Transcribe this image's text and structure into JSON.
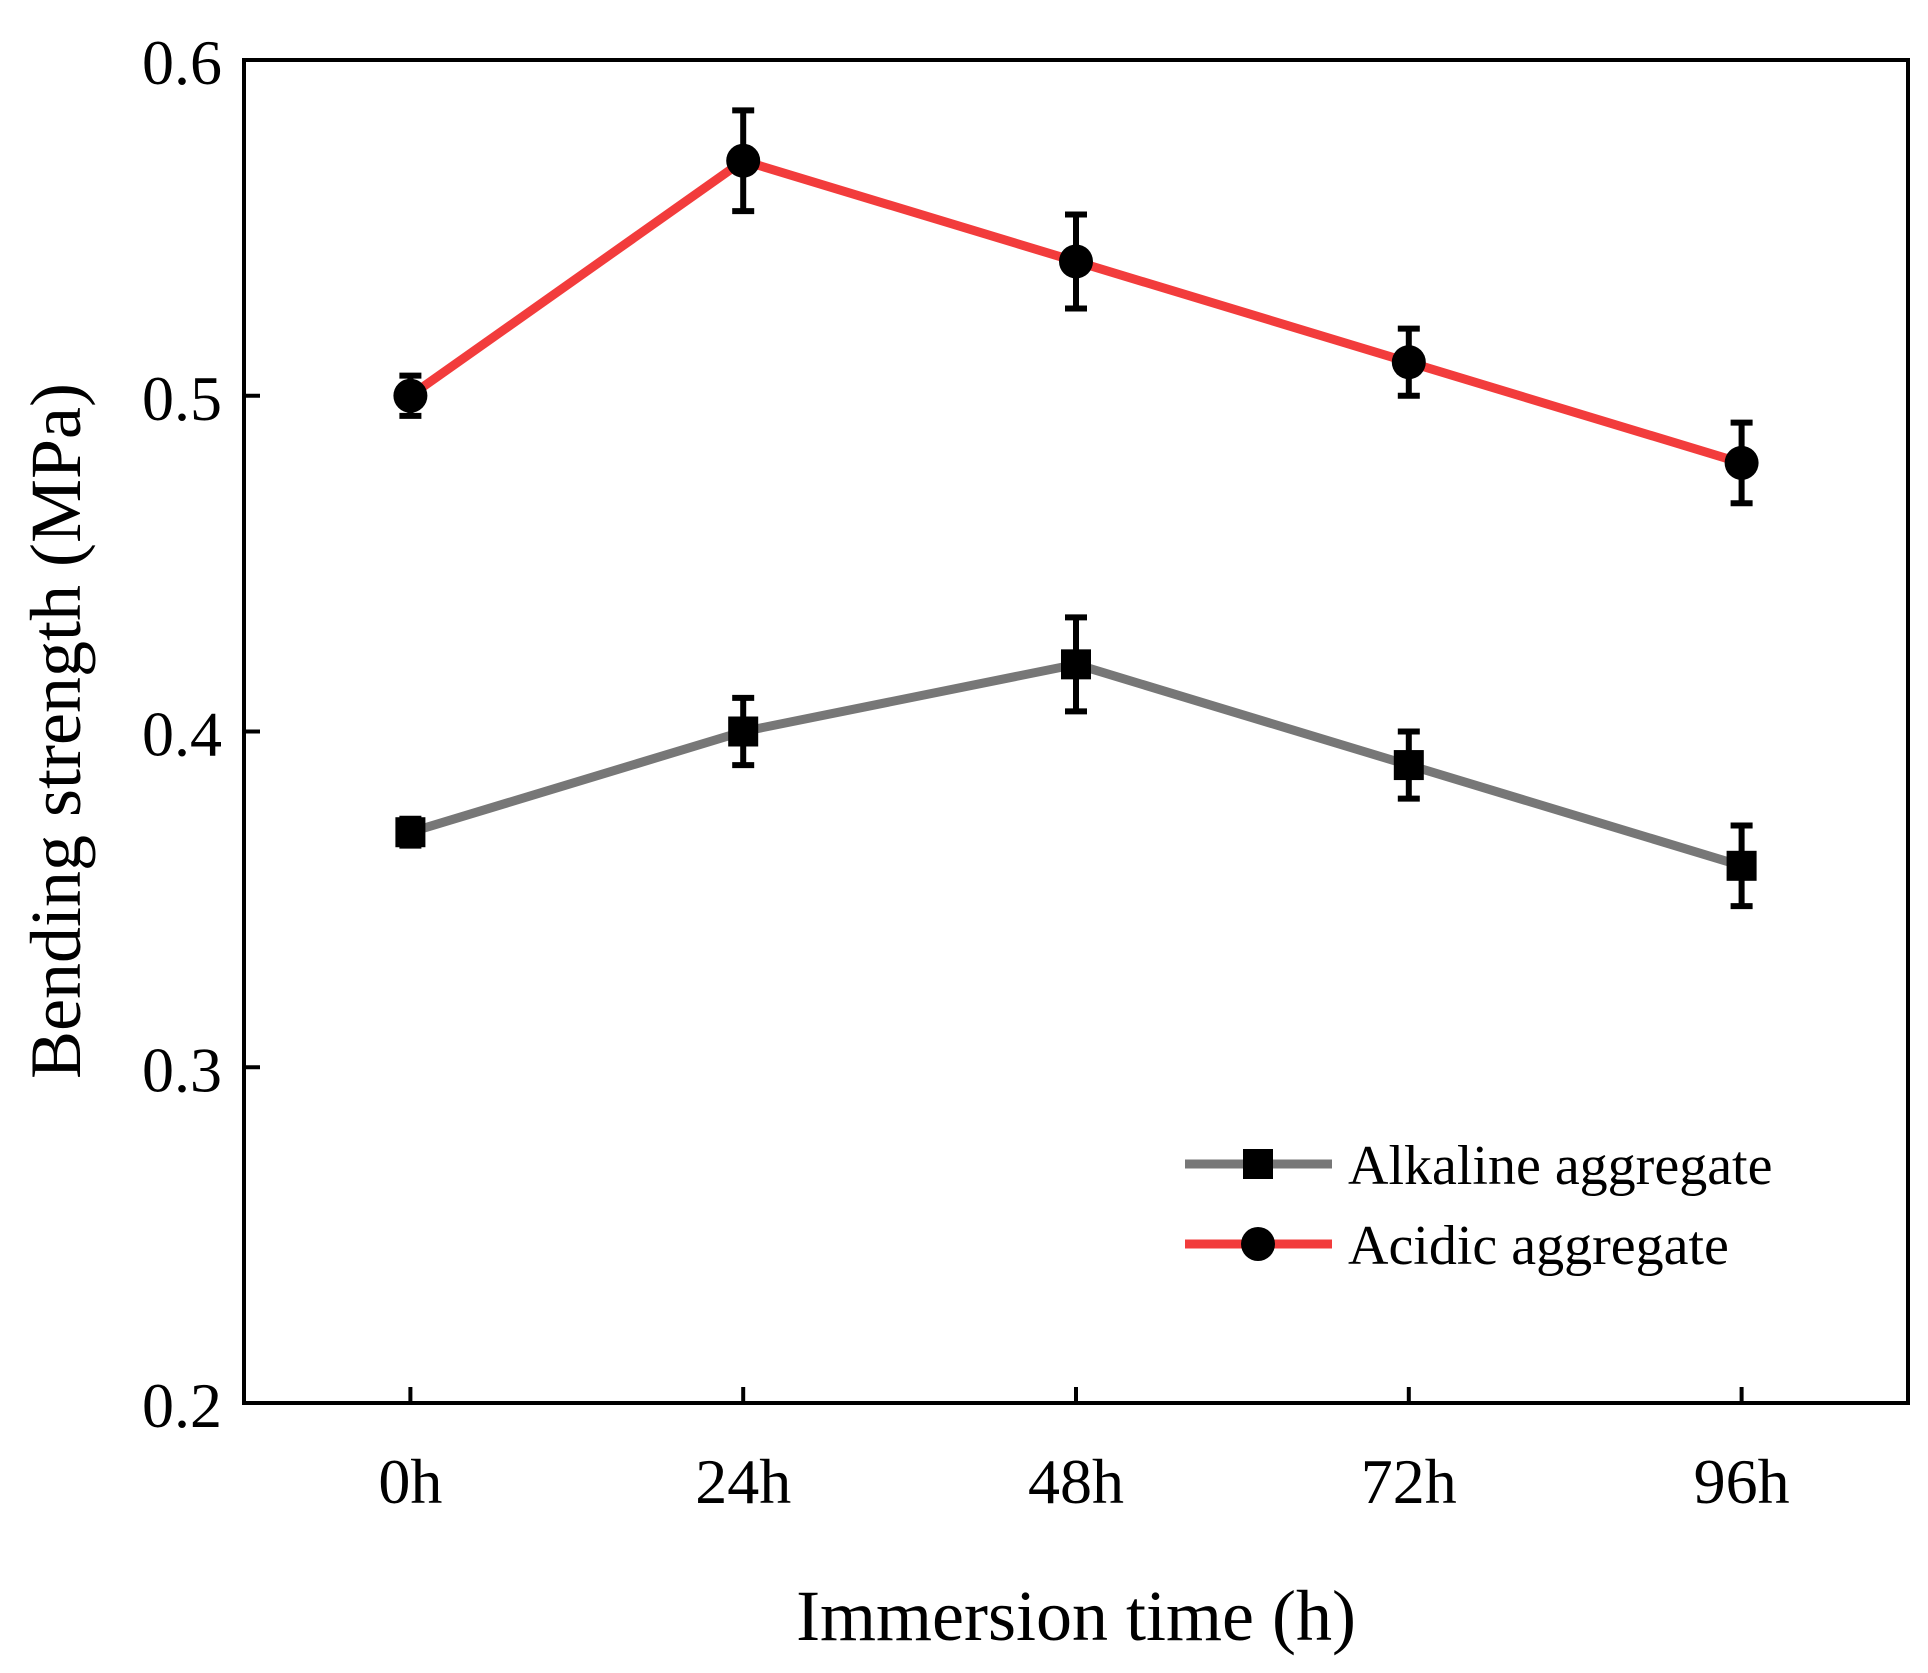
{
  "chart_data": {
    "type": "line",
    "title": "",
    "xlabel": "Immersion time (h)",
    "ylabel": "Bending strength (MPa)",
    "categories": [
      "0h",
      "24h",
      "48h",
      "72h",
      "96h"
    ],
    "ylim": [
      0.2,
      0.6
    ],
    "yticks": [
      "0.2",
      "0.3",
      "0.4",
      "0.5",
      "0.6"
    ],
    "ytick_values": [
      0.2,
      0.3,
      0.4,
      0.5,
      0.6
    ],
    "grid": false,
    "legend_position": "bottom-right",
    "series": [
      {
        "name": "Alkaline aggregate",
        "color": "#777777",
        "marker": "square",
        "values": [
          0.37,
          0.4,
          0.42,
          0.39,
          0.36
        ],
        "errors": [
          0.004,
          0.01,
          0.014,
          0.01,
          0.012
        ]
      },
      {
        "name": "Acidic aggregate",
        "color": "#f23c3c",
        "marker": "circle",
        "values": [
          0.5,
          0.57,
          0.54,
          0.51,
          0.48
        ],
        "errors": [
          0.006,
          0.015,
          0.014,
          0.01,
          0.012
        ]
      }
    ]
  }
}
